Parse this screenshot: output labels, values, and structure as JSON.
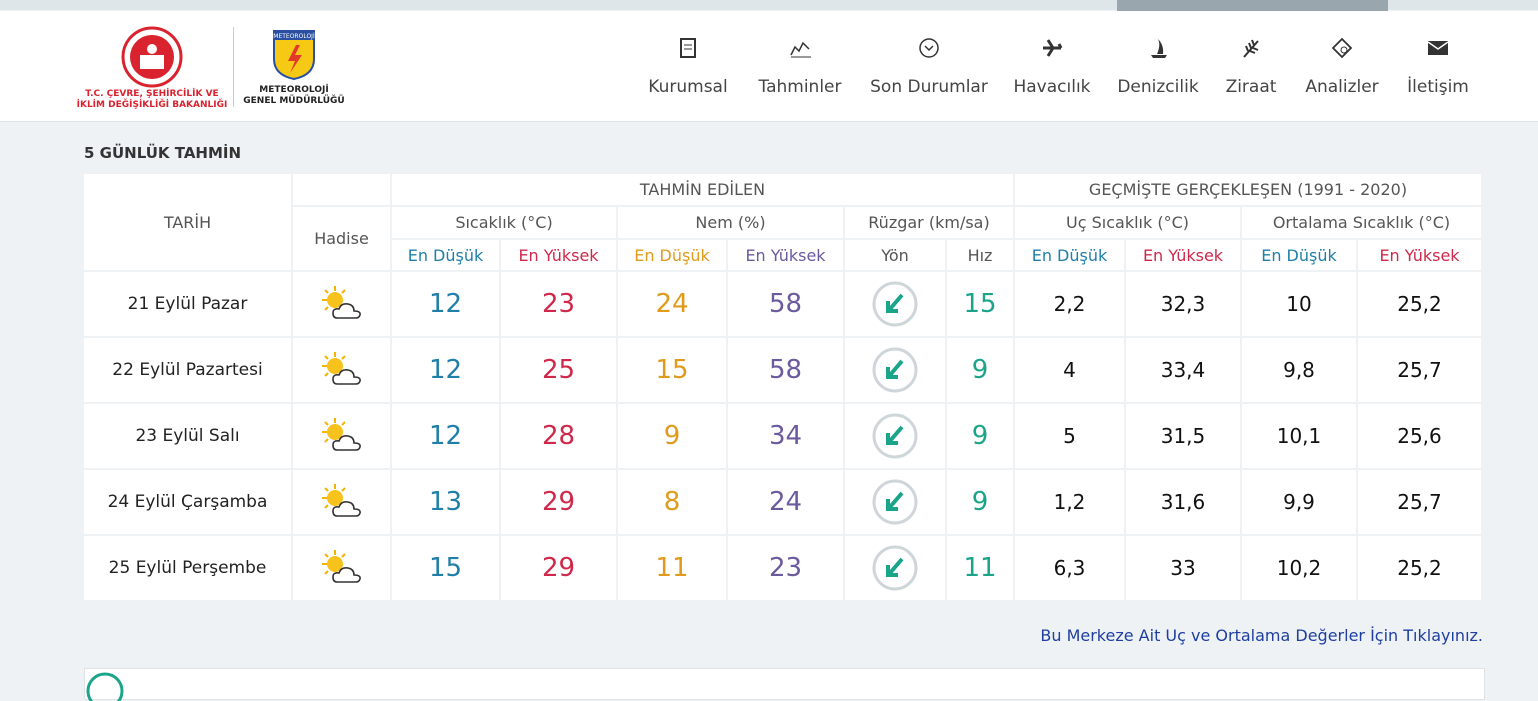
{
  "header": {
    "ministry_logo": {
      "line1": "T.C. ÇEVRE, ŞEHİRCİLİK VE",
      "line2": "İKLİM DEĞİŞİKLİĞİ BAKANLIĞI"
    },
    "mgm_logo": {
      "badge": "METEOROLOJİ",
      "line1": "METEOROLOJİ",
      "line2": "GENEL MÜDÜRLÜĞÜ"
    },
    "nav": [
      "Kurumsal",
      "Tahminler",
      "Son Durumlar",
      "Havacılık",
      "Denizcilik",
      "Ziraat",
      "Analizler",
      "İletişim"
    ]
  },
  "forecast": {
    "title": "5 GÜNLÜK TAHMİN",
    "headers": {
      "date": "TARİH",
      "event": "Hadise",
      "forecast_group": "TAHMİN EDİLEN",
      "history_group": "GEÇMİŞTE GERÇEKLEŞEN (1991 - 2020)",
      "temperature": "Sıcaklık (°C)",
      "humidity": "Nem (%)",
      "wind": "Rüzgar (km/sa)",
      "extreme_temp": "Uç Sıcaklık (°C)",
      "avg_temp": "Ortalama Sıcaklık (°C)",
      "min": "En Düşük",
      "max": "En Yüksek",
      "direction": "Yön",
      "speed": "Hız"
    },
    "rows": [
      [
        "21 Eylül Pazar",
        "12",
        "23",
        "24",
        "58",
        "15",
        "2,2",
        "32,3",
        "10",
        "25,2"
      ],
      [
        "22 Eylül Pazartesi",
        "12",
        "25",
        "15",
        "58",
        "9",
        "4",
        "33,4",
        "9,8",
        "25,7"
      ],
      [
        "23 Eylül Salı",
        "12",
        "28",
        "9",
        "34",
        "9",
        "5",
        "31,5",
        "10,1",
        "25,6"
      ],
      [
        "24 Eylül Çarşamba",
        "13",
        "29",
        "8",
        "24",
        "9",
        "1,2",
        "31,6",
        "9,9",
        "25,7"
      ],
      [
        "25 Eylül Perşembe",
        "15",
        "29",
        "11",
        "23",
        "11",
        "6,3",
        "33",
        "10,2",
        "25,2"
      ]
    ]
  },
  "link": "Bu Merkeze Ait Uç ve Ortalama Değerler İçin Tıklayınız."
}
